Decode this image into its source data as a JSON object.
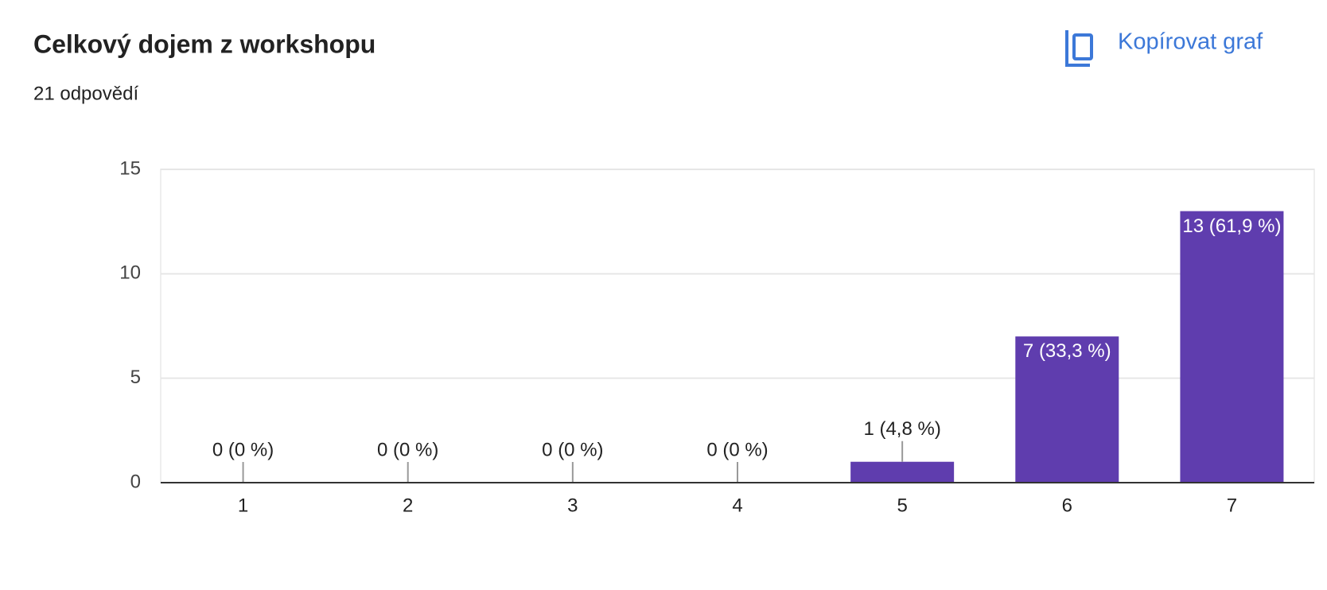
{
  "chart_data": {
    "type": "bar",
    "title": "Celkový dojem z workshopu",
    "subtitle": "21 odpovědí",
    "categories": [
      "1",
      "2",
      "3",
      "4",
      "5",
      "6",
      "7"
    ],
    "values": [
      0,
      0,
      0,
      0,
      1,
      7,
      13
    ],
    "value_labels": [
      "0 (0 %)",
      "0 (0 %)",
      "0 (0 %)",
      "0 (0 %)",
      "1 (4,8 %)",
      "7 (33,3 %)",
      "13 (61,9 %)"
    ],
    "color": "#5f3dae",
    "ylim": [
      0,
      15
    ],
    "yticks": [
      0,
      5,
      10,
      15
    ],
    "grid": true
  },
  "copy_button": "Kopírovat graf"
}
